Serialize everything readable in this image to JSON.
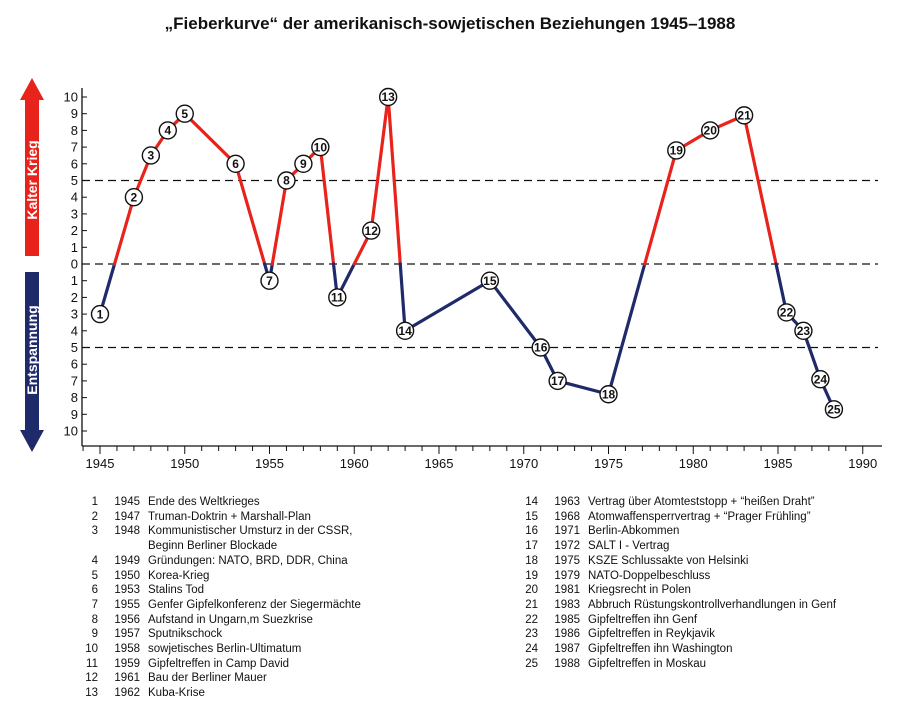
{
  "chart_data": {
    "type": "line",
    "title": "„Fieberkurve“ der amerikanisch-sowjetischen Beziehungen 1945–1988",
    "upper_label": "Kalter Krieg",
    "lower_label": "Entspannung",
    "x_ticks": [
      1945,
      1950,
      1955,
      1960,
      1965,
      1970,
      1975,
      1980,
      1985,
      1990
    ],
    "xlim": [
      1944,
      1991
    ],
    "y_ticks_upper": [
      10,
      9,
      8,
      7,
      6,
      5,
      4,
      3,
      2,
      1
    ],
    "y_tick_zero": 0,
    "y_ticks_lower": [
      1,
      2,
      3,
      4,
      5,
      6,
      7,
      8,
      9,
      10
    ],
    "ylim": [
      -10,
      10
    ],
    "reference_lines": [
      5,
      0,
      -5
    ],
    "colors": {
      "cold_war": "#e8231b",
      "detente": "#1f2a6b",
      "arrow_up": "#e8231b",
      "arrow_down": "#1f2a6b"
    },
    "points": [
      {
        "n": 1,
        "x": 1945,
        "y": -3
      },
      {
        "n": 2,
        "x": 1947,
        "y": 4
      },
      {
        "n": 3,
        "x": 1948,
        "y": 6.5
      },
      {
        "n": 4,
        "x": 1949,
        "y": 8
      },
      {
        "n": 5,
        "x": 1950,
        "y": 9
      },
      {
        "n": 6,
        "x": 1953,
        "y": 6
      },
      {
        "n": 7,
        "x": 1955,
        "y": -1
      },
      {
        "n": 8,
        "x": 1956,
        "y": 5
      },
      {
        "n": 9,
        "x": 1957,
        "y": 6
      },
      {
        "n": 10,
        "x": 1958,
        "y": 7
      },
      {
        "n": 11,
        "x": 1959,
        "y": -2
      },
      {
        "n": 12,
        "x": 1961,
        "y": 2
      },
      {
        "n": 13,
        "x": 1962,
        "y": 10
      },
      {
        "n": 14,
        "x": 1963,
        "y": -4
      },
      {
        "n": 15,
        "x": 1968,
        "y": -1
      },
      {
        "n": 16,
        "x": 1971,
        "y": -5
      },
      {
        "n": 17,
        "x": 1972,
        "y": -7
      },
      {
        "n": 18,
        "x": 1975,
        "y": -7.8
      },
      {
        "n": 19,
        "x": 1979,
        "y": 6.8
      },
      {
        "n": 20,
        "x": 1981,
        "y": 8
      },
      {
        "n": 21,
        "x": 1983,
        "y": 8.9
      },
      {
        "n": 22,
        "x": 1985.5,
        "y": -2.9
      },
      {
        "n": 23,
        "x": 1986.5,
        "y": -4
      },
      {
        "n": 24,
        "x": 1987.5,
        "y": -6.9
      },
      {
        "n": 25,
        "x": 1988.3,
        "y": -8.7
      }
    ]
  },
  "legend_left": [
    {
      "num": "1",
      "year": "1945",
      "event": "Ende des Weltkrieges"
    },
    {
      "num": "2",
      "year": "1947",
      "event": "Truman-Doktrin + Marshall-Plan"
    },
    {
      "num": "3",
      "year": "1948",
      "event": "Kommunistischer Umsturz in der CSSR,"
    },
    {
      "num": "",
      "year": "",
      "event": "Beginn Berliner Blockade"
    },
    {
      "num": "4",
      "year": "1949",
      "event": "Gründungen: NATO, BRD, DDR, China"
    },
    {
      "num": "5",
      "year": "1950",
      "event": "Korea-Krieg"
    },
    {
      "num": "6",
      "year": "1953",
      "event": "Stalins Tod"
    },
    {
      "num": "7",
      "year": "1955",
      "event": "Genfer Gipfelkonferenz der Siegermächte"
    },
    {
      "num": "8",
      "year": "1956",
      "event": "Aufstand in Ungarn,m Suezkrise"
    },
    {
      "num": "9",
      "year": "1957",
      "event": "Sputnikschock"
    },
    {
      "num": "10",
      "year": "1958",
      "event": "sowjetisches Berlin-Ultimatum"
    },
    {
      "num": "11",
      "year": "1959",
      "event": "Gipfeltreffen in Camp David"
    },
    {
      "num": "12",
      "year": "1961",
      "event": "Bau der Berliner Mauer"
    },
    {
      "num": "13",
      "year": "1962",
      "event": "Kuba-Krise"
    }
  ],
  "legend_right": [
    {
      "num": "14",
      "year": "1963",
      "event": "Vertrag über Atomteststopp + “heißen Draht”"
    },
    {
      "num": "15",
      "year": "1968",
      "event": "Atomwaffensperrvertrag + “Prager Frühling”"
    },
    {
      "num": "16",
      "year": "1971",
      "event": "Berlin-Abkommen"
    },
    {
      "num": "17",
      "year": "1972",
      "event": "SALT I - Vertrag"
    },
    {
      "num": "18",
      "year": "1975",
      "event": "KSZE Schlussakte von Helsinki"
    },
    {
      "num": "19",
      "year": "1979",
      "event": "NATO-Doppelbeschluss"
    },
    {
      "num": "20",
      "year": "1981",
      "event": "Kriegsrecht in Polen"
    },
    {
      "num": "21",
      "year": "1983",
      "event": "Abbruch Rüstungskontrollverhandlungen in Genf"
    },
    {
      "num": "22",
      "year": "1985",
      "event": "Gipfeltreffen ihn Genf"
    },
    {
      "num": "23",
      "year": "1986",
      "event": "Gipfeltreffen in Reykjavik"
    },
    {
      "num": "24",
      "year": "1987",
      "event": "Gipfeltreffen ihn Washington"
    },
    {
      "num": "25",
      "year": "1988",
      "event": "Gipfeltreffen in Moskau"
    }
  ]
}
